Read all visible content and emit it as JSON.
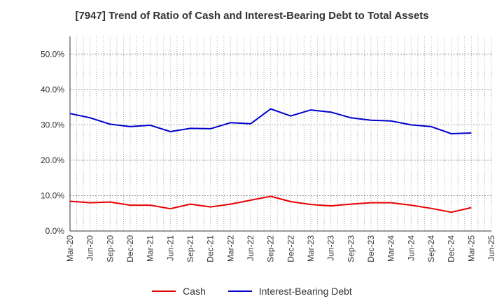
{
  "chart_data": {
    "type": "line",
    "title": "[7947]  Trend of Ratio of Cash and Interest-Bearing Debt to Total Assets",
    "xlabel": "",
    "ylabel": "",
    "categories": [
      "Mar-20",
      "Jun-20",
      "Sep-20",
      "Dec-20",
      "Mar-21",
      "Jun-21",
      "Sep-21",
      "Dec-21",
      "Mar-22",
      "Jun-22",
      "Sep-22",
      "Dec-22",
      "Mar-23",
      "Jun-23",
      "Sep-23",
      "Dec-23",
      "Mar-24",
      "Jun-24",
      "Sep-24",
      "Dec-24",
      "Mar-25",
      "Jun-25"
    ],
    "yticks": [
      "0.0%",
      "10.0%",
      "20.0%",
      "30.0%",
      "40.0%",
      "50.0%"
    ],
    "ylim": [
      0,
      55
    ],
    "grid": true,
    "legend_position": "bottom",
    "series": [
      {
        "name": "Cash",
        "color": "#e60000",
        "values": [
          8.4,
          8.0,
          8.2,
          7.3,
          7.3,
          6.3,
          7.6,
          6.8,
          7.6,
          8.7,
          9.8,
          8.3,
          7.5,
          7.1,
          7.6,
          8.0,
          8.0,
          7.3,
          6.4,
          5.3,
          6.6,
          null
        ]
      },
      {
        "name": "Interest-Bearing Debt",
        "color": "#0000cc",
        "values": [
          33.2,
          32.0,
          30.2,
          29.5,
          29.9,
          28.1,
          29.0,
          28.9,
          30.6,
          30.3,
          34.5,
          32.5,
          34.2,
          33.6,
          32.0,
          31.3,
          31.1,
          30.0,
          29.5,
          27.5,
          27.7,
          null
        ]
      }
    ]
  }
}
